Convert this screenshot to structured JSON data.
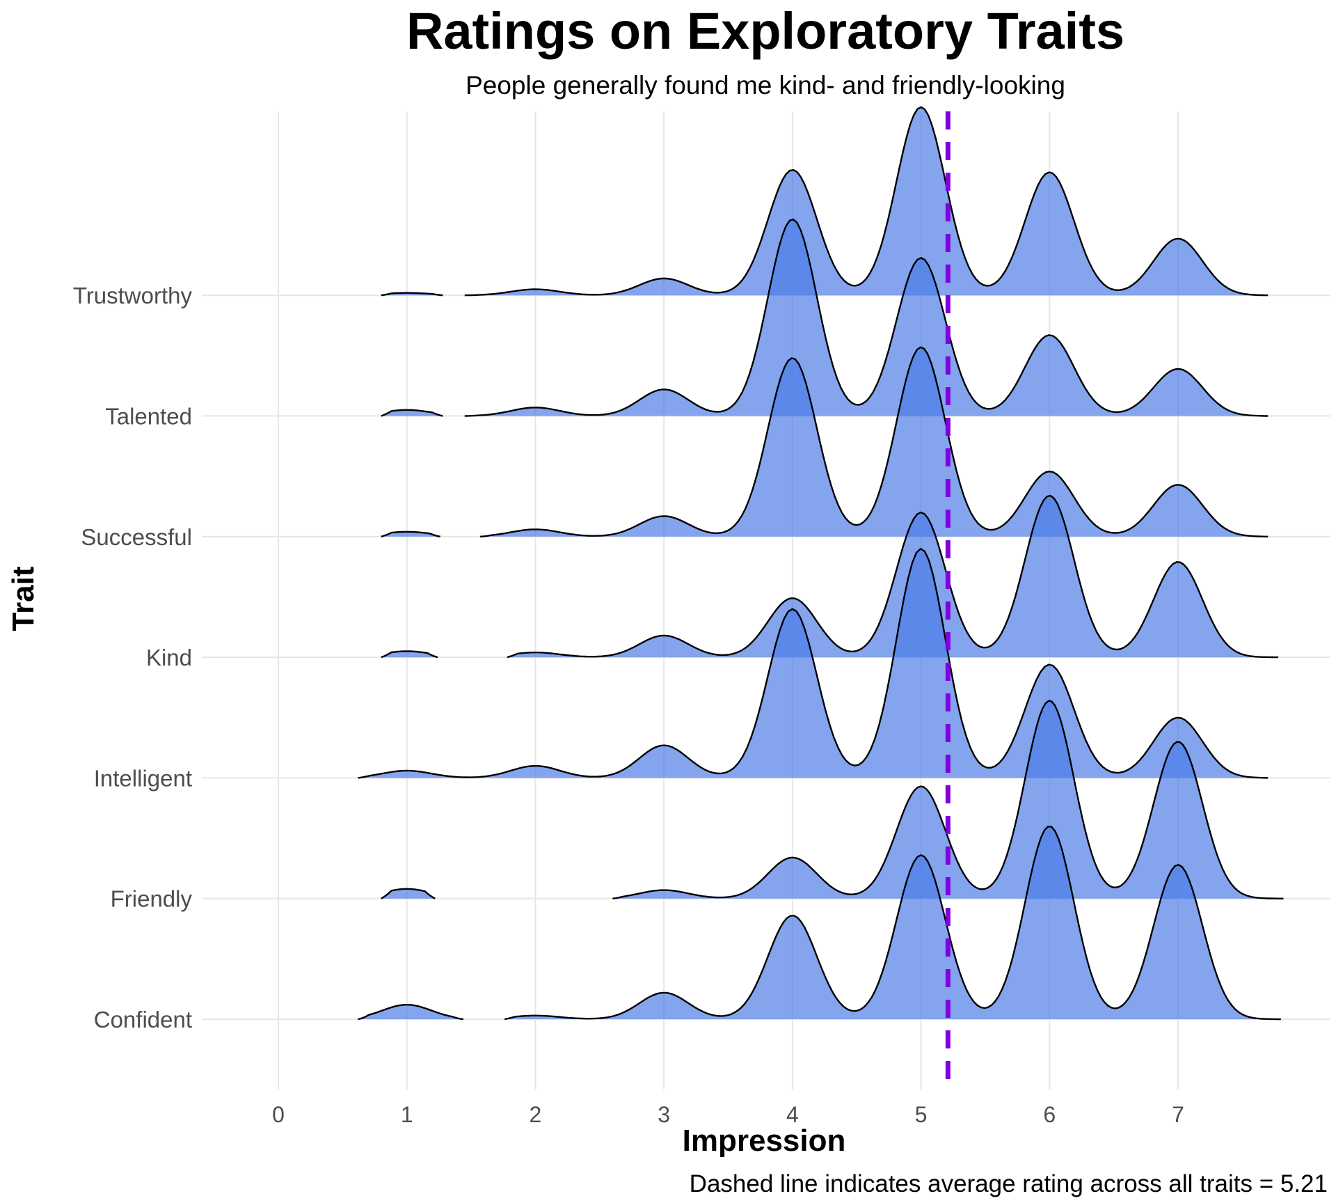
{
  "chart_data": {
    "type": "ridgeline",
    "title": "Ratings on Exploratory Traits",
    "subtitle": "People generally found me kind- and friendly-looking",
    "xlabel": "Impression",
    "ylabel": "Trait",
    "caption": "Dashed line indicates average rating across all traits = 5.21",
    "xlim": [
      0,
      7.8
    ],
    "xticks": [
      0,
      1,
      2,
      3,
      4,
      5,
      6,
      7
    ],
    "grid": true,
    "reference_line": {
      "x": 5.21,
      "style": "dashed",
      "color": "#8000E0"
    },
    "fill_color": "#4A7BE6",
    "line_color": "#000000",
    "series": [
      {
        "name": "Confident",
        "segments": [
          {
            "from": 0.62,
            "to": 1.44,
            "peaks": [
              [
                1,
                0.12
              ]
            ]
          },
          {
            "from": 1.76,
            "to": 7.8,
            "peaks": [
              [
                2,
                0.03
              ],
              [
                3,
                0.22
              ],
              [
                4,
                0.86
              ],
              [
                5,
                1.36
              ],
              [
                6,
                1.6
              ],
              [
                7,
                1.28
              ]
            ]
          }
        ]
      },
      {
        "name": "Friendly",
        "segments": [
          {
            "from": 0.8,
            "to": 1.22,
            "peaks": [
              [
                1,
                0.08
              ]
            ]
          },
          {
            "from": 2.6,
            "to": 7.82,
            "peaks": [
              [
                3,
                0.07
              ],
              [
                4,
                0.34
              ],
              [
                5,
                0.93
              ],
              [
                6,
                1.64
              ],
              [
                7,
                1.3
              ]
            ]
          }
        ]
      },
      {
        "name": "Intelligent",
        "segments": [
          {
            "from": 0.62,
            "to": 7.7,
            "peaks": [
              [
                1,
                0.06
              ],
              [
                2,
                0.1
              ],
              [
                3,
                0.27
              ],
              [
                4,
                1.4
              ],
              [
                5,
                1.9
              ],
              [
                6,
                0.94
              ],
              [
                7,
                0.5
              ]
            ]
          }
        ]
      },
      {
        "name": "Kind",
        "segments": [
          {
            "from": 0.8,
            "to": 1.24,
            "peaks": [
              [
                1,
                0.05
              ]
            ]
          },
          {
            "from": 1.78,
            "to": 7.78,
            "peaks": [
              [
                2,
                0.04
              ],
              [
                3,
                0.18
              ],
              [
                4,
                0.49
              ],
              [
                5,
                1.2
              ],
              [
                6,
                1.34
              ],
              [
                7,
                0.79
              ]
            ]
          }
        ]
      },
      {
        "name": "Successful",
        "segments": [
          {
            "from": 0.8,
            "to": 1.26,
            "peaks": [
              [
                1,
                0.04
              ]
            ]
          },
          {
            "from": 1.57,
            "to": 7.7,
            "peaks": [
              [
                2,
                0.06
              ],
              [
                3,
                0.17
              ],
              [
                4,
                1.48
              ],
              [
                5,
                1.57
              ],
              [
                6,
                0.54
              ],
              [
                7,
                0.43
              ]
            ]
          }
        ]
      },
      {
        "name": "Talented",
        "segments": [
          {
            "from": 0.8,
            "to": 1.28,
            "peaks": [
              [
                1,
                0.05
              ]
            ]
          },
          {
            "from": 1.45,
            "to": 7.7,
            "peaks": [
              [
                2,
                0.07
              ],
              [
                3,
                0.22
              ],
              [
                4,
                1.63
              ],
              [
                5,
                1.31
              ],
              [
                6,
                0.67
              ],
              [
                7,
                0.39
              ]
            ]
          }
        ]
      },
      {
        "name": "Trustworthy",
        "segments": [
          {
            "from": 0.8,
            "to": 1.28,
            "peaks": [
              [
                1,
                0.02
              ]
            ]
          },
          {
            "from": 1.45,
            "to": 7.7,
            "peaks": [
              [
                2,
                0.05
              ],
              [
                3,
                0.14
              ],
              [
                4,
                1.04
              ],
              [
                5,
                1.56
              ],
              [
                6,
                1.02
              ],
              [
                7,
                0.47
              ]
            ]
          }
        ]
      }
    ]
  }
}
